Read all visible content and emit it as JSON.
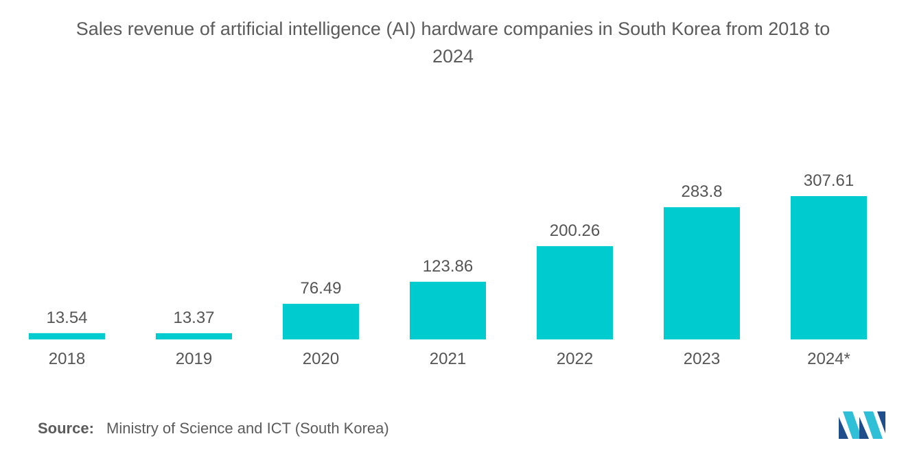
{
  "chart_title": {
    "line1": "Sales revenue of artificial intelligence (AI) hardware companies in South Korea from 2018 to",
    "line2": "2024"
  },
  "source": {
    "label": "Source:",
    "text": "Ministry of Science and ICT (South Korea)"
  },
  "colors": {
    "bar": "#00CCD0",
    "text": "#555555",
    "logo_dark": "#1f4e8c",
    "logo_light": "#2fc0d8"
  },
  "logo_icon": "mordor-intelligence-logo-icon",
  "chart_data": {
    "type": "bar",
    "title": "Sales revenue of artificial intelligence (AI) hardware companies in South Korea from 2018 to 2024",
    "categories": [
      "2018",
      "2019",
      "2020",
      "2021",
      "2022",
      "2023",
      "2024*"
    ],
    "values": [
      13.54,
      13.37,
      76.49,
      123.86,
      200.26,
      283.8,
      307.61
    ],
    "value_labels": [
      "13.54",
      "13.37",
      "76.49",
      "123.86",
      "200.26",
      "283.8",
      "307.61"
    ],
    "xlabel": "",
    "ylabel": "",
    "ylim": [
      0,
      307.61
    ],
    "grid": false,
    "legend": "none"
  }
}
